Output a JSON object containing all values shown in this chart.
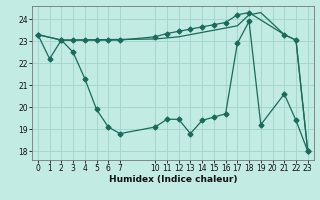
{
  "xlabel": "Humidex (Indice chaleur)",
  "bg_color": "#c2ebe4",
  "grid_color": "#a0d4cc",
  "line_color": "#1a6b5a",
  "xlim": [
    -0.5,
    23.5
  ],
  "ylim": [
    17.6,
    24.6
  ],
  "yticks": [
    18,
    19,
    20,
    21,
    22,
    23,
    24
  ],
  "xticks": [
    0,
    1,
    2,
    3,
    4,
    5,
    6,
    7,
    10,
    11,
    12,
    13,
    14,
    15,
    16,
    17,
    18,
    19,
    20,
    21,
    22,
    23
  ],
  "s1x": [
    0,
    2,
    3,
    4,
    5,
    6,
    7,
    10,
    11,
    12,
    13,
    14,
    15,
    16,
    17,
    18,
    21,
    22,
    23
  ],
  "s1y": [
    23.3,
    23.05,
    23.05,
    23.05,
    23.05,
    23.05,
    23.05,
    23.2,
    23.35,
    23.45,
    23.55,
    23.65,
    23.75,
    23.85,
    24.2,
    24.3,
    23.3,
    23.05,
    18.0
  ],
  "s2x": [
    0,
    2,
    10,
    11,
    12,
    13,
    14,
    15,
    16,
    17,
    18,
    19,
    21,
    22,
    23
  ],
  "s2y": [
    23.3,
    23.05,
    23.1,
    23.15,
    23.2,
    23.3,
    23.4,
    23.5,
    23.6,
    23.7,
    24.2,
    24.3,
    23.3,
    23.05,
    18.0
  ],
  "s3x": [
    0,
    1,
    2,
    3,
    4,
    5,
    6,
    7,
    10,
    11,
    12,
    13,
    14,
    15,
    16,
    17,
    18,
    19,
    21,
    22,
    23
  ],
  "s3y": [
    23.3,
    22.2,
    23.05,
    22.5,
    21.3,
    19.9,
    19.1,
    18.8,
    19.1,
    19.45,
    19.45,
    18.8,
    19.4,
    19.55,
    19.7,
    22.9,
    23.9,
    19.2,
    20.6,
    19.4,
    18.0
  ]
}
